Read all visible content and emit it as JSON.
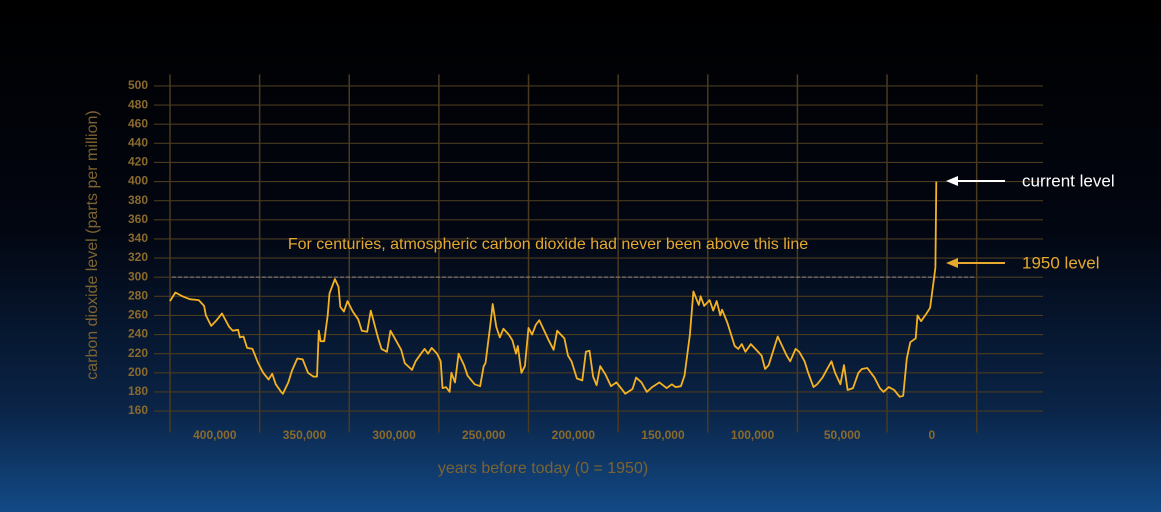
{
  "chart_data": {
    "type": "line",
    "x_label": "years before today (0 = 1950)",
    "y_label": "carbon dioxide level (parts per million)",
    "annotations": [
      "For centuries, atmospheric carbon dioxide had never been above this line",
      "current level",
      "1950 level"
    ],
    "reference_value": 300,
    "color": "#f4b223",
    "grid": true,
    "xlim": [
      425000,
      -62000
    ],
    "ylim": [
      150,
      510
    ],
    "yticks": [
      160,
      180,
      200,
      220,
      240,
      260,
      280,
      300,
      320,
      340,
      360,
      380,
      400,
      420,
      440,
      460,
      480,
      500
    ],
    "xticks": [
      {
        "value": 400000,
        "label": "400,000"
      },
      {
        "value": 350000,
        "label": "350,000"
      },
      {
        "value": 300000,
        "label": "300,000"
      },
      {
        "value": 250000,
        "label": "250,000"
      },
      {
        "value": 200000,
        "label": "200,000"
      },
      {
        "value": 150000,
        "label": "150,000"
      },
      {
        "value": 100000,
        "label": "100,000"
      },
      {
        "value": 50000,
        "label": "50,000"
      },
      0
    ],
    "x": [
      425000,
      422000,
      418000,
      414000,
      409000,
      406000,
      405000,
      402000,
      399000,
      396000,
      392000,
      390000,
      387000,
      386000,
      384000,
      382000,
      379000,
      376000,
      373000,
      370000,
      368000,
      366000,
      363000,
      362000,
      359000,
      357000,
      354000,
      351000,
      348000,
      345000,
      343000,
      342000,
      341000,
      339000,
      337000,
      336000,
      333000,
      331000,
      330000,
      328000,
      326000,
      323000,
      320000,
      318000,
      315000,
      313000,
      312000,
      309000,
      307000,
      304000,
      302000,
      299000,
      296000,
      294000,
      290000,
      288000,
      285000,
      283000,
      281000,
      279000,
      276000,
      274000,
      273000,
      271000,
      269000,
      268000,
      266000,
      264000,
      261000,
      259000,
      255000,
      252000,
      250000,
      249000,
      246000,
      245000,
      243000,
      241000,
      239000,
      236000,
      234000,
      232000,
      231000,
      229000,
      227000,
      225000,
      223000,
      221000,
      219000,
      216000,
      214000,
      211000,
      209000,
      207000,
      205000,
      203000,
      201000,
      198000,
      195000,
      193000,
      191000,
      189000,
      187000,
      185000,
      182000,
      179000,
      176000,
      173000,
      171000,
      167000,
      165000,
      162000,
      159000,
      156000,
      152000,
      148000,
      145000,
      143000,
      140000,
      138000,
      135000,
      133000,
      130000,
      129000,
      127000,
      124000,
      122000,
      120000,
      118000,
      117000,
      114000,
      112000,
      110000,
      108000,
      106000,
      104000,
      101000,
      98000,
      95000,
      93000,
      91000,
      89000,
      86000,
      84000,
      81000,
      79000,
      76000,
      74000,
      71000,
      69000,
      66000,
      64000,
      61000,
      59000,
      56000,
      54000,
      51000,
      49000,
      47000,
      44000,
      41000,
      39000,
      36000,
      32000,
      29000,
      27000,
      24000,
      21000,
      18000,
      16000,
      14000,
      12000,
      9000,
      8000,
      6000,
      3000,
      1000,
      0,
      -2000,
      -2500
    ],
    "values": [
      275,
      284,
      280,
      277,
      276,
      270,
      260,
      249,
      255,
      262,
      248,
      244,
      245,
      237,
      238,
      226,
      225,
      211,
      200,
      193,
      199,
      188,
      180,
      178,
      190,
      202,
      215,
      214,
      200,
      196,
      196,
      244,
      233,
      233,
      260,
      283,
      298,
      290,
      269,
      264,
      275,
      264,
      256,
      244,
      243,
      265,
      258,
      237,
      225,
      222,
      244,
      234,
      224,
      210,
      203,
      212,
      220,
      225,
      220,
      226,
      220,
      212,
      184,
      185,
      180,
      200,
      190,
      220,
      208,
      197,
      188,
      186,
      207,
      210,
      255,
      272,
      248,
      237,
      246,
      240,
      234,
      220,
      228,
      200,
      207,
      247,
      240,
      250,
      255,
      243,
      235,
      224,
      244,
      240,
      236,
      218,
      212,
      194,
      192,
      222,
      223,
      196,
      187,
      207,
      198,
      186,
      190,
      183,
      178,
      183,
      195,
      190,
      180,
      185,
      190,
      184,
      188,
      185,
      186,
      197,
      240,
      285,
      271,
      280,
      270,
      276,
      265,
      275,
      260,
      266,
      252,
      240,
      228,
      225,
      230,
      222,
      230,
      224,
      218,
      204,
      208,
      220,
      238,
      230,
      218,
      212,
      225,
      222,
      212,
      200,
      185,
      188,
      195,
      202,
      212,
      200,
      188,
      208,
      182,
      184,
      200,
      204,
      205,
      195,
      184,
      180,
      185,
      182,
      175,
      176,
      215,
      232,
      236,
      260,
      254,
      262,
      268,
      282,
      310,
      400
    ]
  }
}
